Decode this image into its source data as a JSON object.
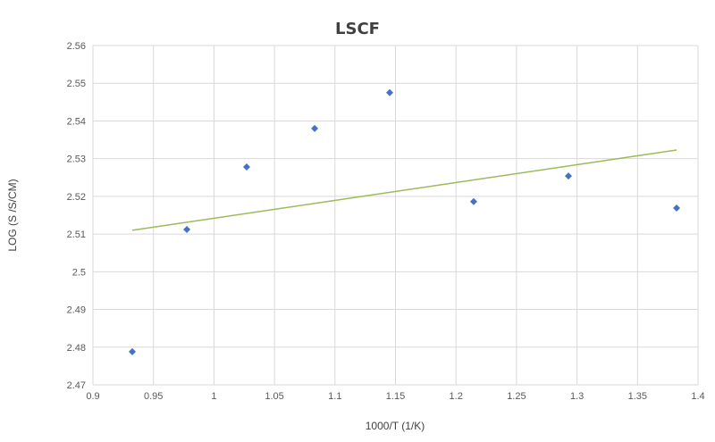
{
  "chart_data": {
    "type": "scatter",
    "title": "LSCF",
    "xlabel": "1000/T (1/K)",
    "ylabel": "LOG (S /S/CM)",
    "xlim": [
      0.9,
      1.4
    ],
    "ylim": [
      2.47,
      2.56
    ],
    "xticks": [
      0.9,
      0.95,
      1,
      1.05,
      1.1,
      1.15,
      1.2,
      1.25,
      1.3,
      1.35,
      1.4
    ],
    "xtick_labels": [
      "0.9",
      "0.95",
      "1",
      "1.05",
      "1.1",
      "1.15",
      "1.2",
      "1.25",
      "1.3",
      "1.35",
      "1.4"
    ],
    "yticks": [
      2.47,
      2.48,
      2.49,
      2.5,
      2.51,
      2.52,
      2.53,
      2.54,
      2.55,
      2.56
    ],
    "ytick_labels": [
      "2.47",
      "2.48",
      "2.49",
      "2.5",
      "2.51",
      "2.52",
      "2.53",
      "2.54",
      "2.55",
      "2.56"
    ],
    "grid": true,
    "series": [
      {
        "marker": "diamond",
        "color": "#4472C4",
        "x": [
          0.9325,
          0.9776,
          1.027,
          1.0832,
          1.1452,
          1.2146,
          1.2929,
          1.3823
        ],
        "y": [
          2.4788,
          2.5112,
          2.5278,
          2.538,
          2.5475,
          2.5186,
          2.5254,
          2.5169
        ]
      }
    ],
    "trendline": {
      "type": "linear",
      "color": "#9BBB59",
      "x": [
        0.9325,
        1.3823
      ],
      "y": [
        2.511,
        2.5323
      ]
    }
  }
}
